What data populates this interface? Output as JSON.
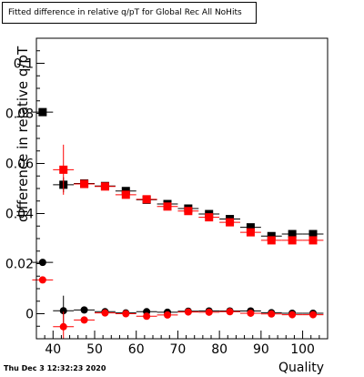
{
  "chart_data": {
    "type": "scatter",
    "title": "Fitted difference in relative q/pT for Global Rec All NoHits",
    "xlabel": "Quality",
    "ylabel": "difference in relative q/pT",
    "xlim": [
      36,
      106
    ],
    "ylim": [
      -0.01,
      0.11
    ],
    "x_ticks": [
      40,
      50,
      60,
      70,
      80,
      90,
      100
    ],
    "x_tick_labels": [
      "40",
      "50",
      "60",
      "70",
      "80",
      "90",
      "100"
    ],
    "y_ticks": [
      0,
      0.02,
      0.04,
      0.06,
      0.08,
      0.1
    ],
    "y_tick_labels": [
      "0",
      "0.02",
      "0.04",
      "0.06",
      "0.08",
      "0.1"
    ],
    "grid": false,
    "legend": null,
    "series": [
      {
        "marker": "square",
        "color": "#000000",
        "points": [
          {
            "x": 37.5,
            "y": 0.0805,
            "yerr": 0.0
          },
          {
            "x": 42.5,
            "y": 0.0515,
            "yerr": 0.003
          },
          {
            "x": 47.5,
            "y": 0.052,
            "yerr": 0.0015
          },
          {
            "x": 52.5,
            "y": 0.051,
            "yerr": 0.001
          },
          {
            "x": 57.5,
            "y": 0.049,
            "yerr": 0.001
          },
          {
            "x": 62.5,
            "y": 0.0455,
            "yerr": 0.001
          },
          {
            "x": 67.5,
            "y": 0.0438,
            "yerr": 0.001
          },
          {
            "x": 72.5,
            "y": 0.042,
            "yerr": 0.001
          },
          {
            "x": 77.5,
            "y": 0.0398,
            "yerr": 0.001
          },
          {
            "x": 82.5,
            "y": 0.0378,
            "yerr": 0.001
          },
          {
            "x": 87.5,
            "y": 0.0345,
            "yerr": 0.001
          },
          {
            "x": 92.5,
            "y": 0.031,
            "yerr": 0.001
          },
          {
            "x": 97.5,
            "y": 0.0318,
            "yerr": 0.001
          },
          {
            "x": 102.5,
            "y": 0.0318,
            "yerr": 0.001
          }
        ]
      },
      {
        "marker": "square",
        "color": "#ff0000",
        "points": [
          {
            "x": 42.5,
            "y": 0.0575,
            "yerr": 0.01
          },
          {
            "x": 47.5,
            "y": 0.0518,
            "yerr": 0.0015
          },
          {
            "x": 52.5,
            "y": 0.0508,
            "yerr": 0.001
          },
          {
            "x": 57.5,
            "y": 0.0475,
            "yerr": 0.001
          },
          {
            "x": 62.5,
            "y": 0.0457,
            "yerr": 0.001
          },
          {
            "x": 67.5,
            "y": 0.0428,
            "yerr": 0.001
          },
          {
            "x": 72.5,
            "y": 0.041,
            "yerr": 0.001
          },
          {
            "x": 77.5,
            "y": 0.0385,
            "yerr": 0.001
          },
          {
            "x": 82.5,
            "y": 0.0365,
            "yerr": 0.001
          },
          {
            "x": 87.5,
            "y": 0.0325,
            "yerr": 0.001
          },
          {
            "x": 92.5,
            "y": 0.0293,
            "yerr": 0.001
          },
          {
            "x": 97.5,
            "y": 0.0293,
            "yerr": 0.001
          },
          {
            "x": 102.5,
            "y": 0.0293,
            "yerr": 0.001
          }
        ]
      },
      {
        "marker": "circle",
        "color": "#000000",
        "points": [
          {
            "x": 37.5,
            "y": 0.0205,
            "yerr": 0.0
          },
          {
            "x": 42.5,
            "y": 0.0012,
            "yerr": 0.006
          },
          {
            "x": 47.5,
            "y": 0.0015,
            "yerr": 0.001
          },
          {
            "x": 52.5,
            "y": 0.0008,
            "yerr": 0.001
          },
          {
            "x": 57.5,
            "y": 0.0003,
            "yerr": 0.001
          },
          {
            "x": 62.5,
            "y": 0.0008,
            "yerr": 0.001
          },
          {
            "x": 67.5,
            "y": 0.0006,
            "yerr": 0.001
          },
          {
            "x": 72.5,
            "y": 0.001,
            "yerr": 0.001
          },
          {
            "x": 77.5,
            "y": 0.0011,
            "yerr": 0.001
          },
          {
            "x": 82.5,
            "y": 0.0011,
            "yerr": 0.001
          },
          {
            "x": 87.5,
            "y": 0.0011,
            "yerr": 0.001
          },
          {
            "x": 92.5,
            "y": 0.0004,
            "yerr": 0.001
          },
          {
            "x": 97.5,
            "y": 0.0002,
            "yerr": 0.001
          },
          {
            "x": 102.5,
            "y": 0.0002,
            "yerr": 0.001
          }
        ]
      },
      {
        "marker": "circle",
        "color": "#ff0000",
        "points": [
          {
            "x": 37.5,
            "y": 0.0135,
            "yerr": 0.0
          },
          {
            "x": 42.5,
            "y": -0.0052,
            "yerr": 0.006
          },
          {
            "x": 47.5,
            "y": -0.0025,
            "yerr": 0.001
          },
          {
            "x": 52.5,
            "y": 0.0003,
            "yerr": 0.001
          },
          {
            "x": 57.5,
            "y": 0.0,
            "yerr": 0.001
          },
          {
            "x": 62.5,
            "y": -0.001,
            "yerr": 0.001
          },
          {
            "x": 67.5,
            "y": -0.0005,
            "yerr": 0.001
          },
          {
            "x": 72.5,
            "y": 0.0007,
            "yerr": 0.001
          },
          {
            "x": 77.5,
            "y": 0.0006,
            "yerr": 0.001
          },
          {
            "x": 82.5,
            "y": 0.0008,
            "yerr": 0.001
          },
          {
            "x": 87.5,
            "y": 0.0002,
            "yerr": 0.001
          },
          {
            "x": 92.5,
            "y": -0.0001,
            "yerr": 0.001
          },
          {
            "x": 97.5,
            "y": -0.0004,
            "yerr": 0.001
          },
          {
            "x": 102.5,
            "y": -0.0004,
            "yerr": 0.001
          }
        ]
      }
    ]
  },
  "footer": {
    "timestamp": "Thu Dec  3 12:32:23 2020"
  }
}
